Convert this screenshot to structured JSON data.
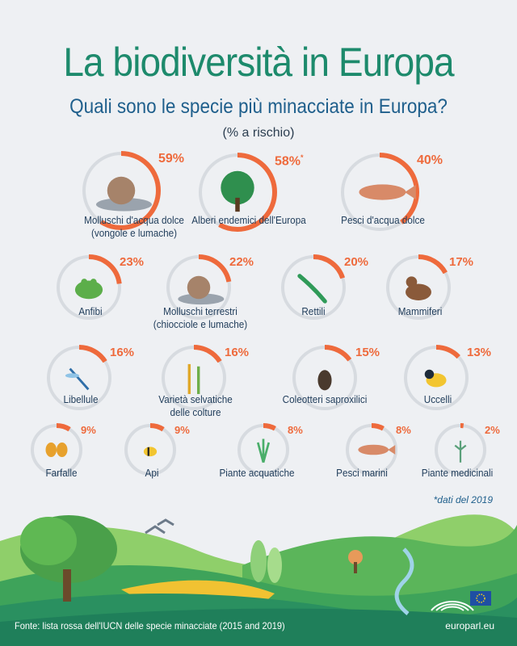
{
  "title": "La biodiversità in Europa",
  "subtitle": "Quali sono le specie più minacciate in Europa?",
  "unit": "(% a rischio)",
  "note": "*dati del 2019",
  "source": "Fonte: lista rossa dell'IUCN delle specie minacciate (2015 and 2019)",
  "site": "europarl.eu",
  "colors": {
    "accent": "#ee6a3c",
    "ring": "#d7dbe0",
    "title": "#1d8a6c",
    "subtitle": "#1f5f8c"
  },
  "chart_data": {
    "type": "pie",
    "title": "La biodiversità in Europa",
    "subtitle": "Quali sono le specie più minacciate in Europa?",
    "categories": [
      "Molluschi d'acqua dolce (vongole e lumache)",
      "Alberi endemici dell'Europa",
      "Pesci d'acqua dolce",
      "Anfibi",
      "Molluschi terrestri (chiocciole e lumache)",
      "Rettili",
      "Mammiferi",
      "Libellule",
      "Varietà selvatiche delle colture",
      "Coleotteri saproxilici",
      "Uccelli",
      "Farfalle",
      "Api",
      "Piante acquatiche",
      "Pesci marini",
      "Piante medicinali"
    ],
    "values": [
      59,
      58,
      40,
      23,
      22,
      20,
      17,
      16,
      16,
      15,
      13,
      9,
      9,
      8,
      8,
      2
    ],
    "items": [
      {
        "label_lines": [
          "Molluschi d'acqua dolce",
          "(vongole e lumache)"
        ],
        "value": 59,
        "value_label": "59%",
        "icon": "snail-icon"
      },
      {
        "label_lines": [
          "Alberi endemici dell'Europa"
        ],
        "value": 58,
        "value_label": "58%",
        "marker": "*",
        "icon": "tree-icon"
      },
      {
        "label_lines": [
          "Pesci d'acqua dolce"
        ],
        "value": 40,
        "value_label": "40%",
        "icon": "fish-icon"
      },
      {
        "label_lines": [
          "Anfibi"
        ],
        "value": 23,
        "value_label": "23%",
        "icon": "frog-icon"
      },
      {
        "label_lines": [
          "Molluschi terrestri",
          "(chiocciole e lumache)"
        ],
        "value": 22,
        "value_label": "22%",
        "icon": "snail-icon"
      },
      {
        "label_lines": [
          "Rettili"
        ],
        "value": 20,
        "value_label": "20%",
        "icon": "lizard-icon"
      },
      {
        "label_lines": [
          "Mammiferi"
        ],
        "value": 17,
        "value_label": "17%",
        "icon": "otter-icon"
      },
      {
        "label_lines": [
          "Libellule"
        ],
        "value": 16,
        "value_label": "16%",
        "icon": "dragonfly-icon"
      },
      {
        "label_lines": [
          "Varietà selvatiche",
          "delle colture"
        ],
        "value": 16,
        "value_label": "16%",
        "icon": "wheat-icon"
      },
      {
        "label_lines": [
          "Coleotteri saproxilici"
        ],
        "value": 15,
        "value_label": "15%",
        "icon": "beetle-icon"
      },
      {
        "label_lines": [
          "Uccelli"
        ],
        "value": 13,
        "value_label": "13%",
        "icon": "bird-icon"
      },
      {
        "label_lines": [
          "Farfalle"
        ],
        "value": 9,
        "value_label": "9%",
        "icon": "butterfly-icon"
      },
      {
        "label_lines": [
          "Api"
        ],
        "value": 9,
        "value_label": "9%",
        "icon": "bee-icon"
      },
      {
        "label_lines": [
          "Piante acquatiche"
        ],
        "value": 8,
        "value_label": "8%",
        "icon": "aquatic-plant-icon"
      },
      {
        "label_lines": [
          "Pesci marini"
        ],
        "value": 8,
        "value_label": "8%",
        "icon": "fish-icon"
      },
      {
        "label_lines": [
          "Piante medicinali"
        ],
        "value": 2,
        "value_label": "2%",
        "icon": "herb-icon"
      }
    ]
  }
}
